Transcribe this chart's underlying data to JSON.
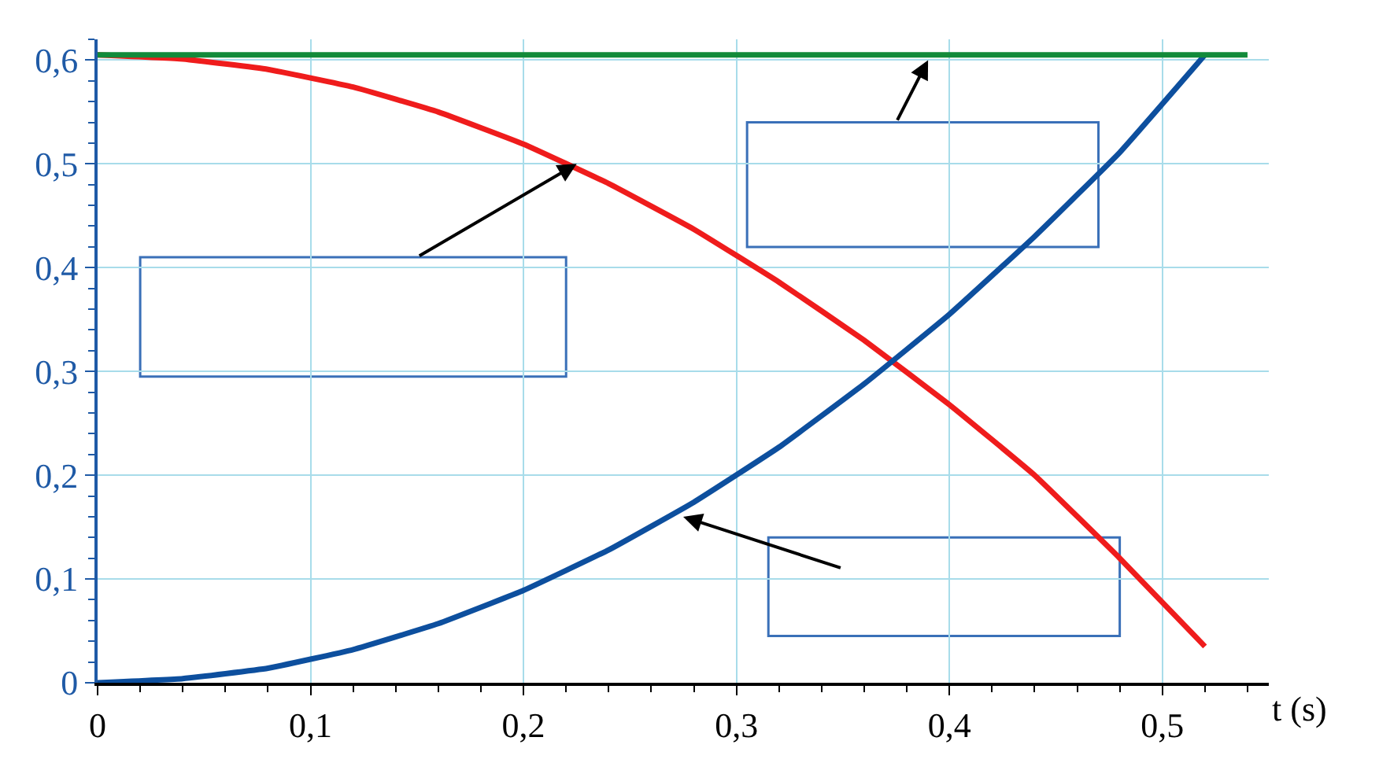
{
  "chart_data": {
    "type": "line",
    "xlabel": "t (s)",
    "x": [
      0,
      0.04,
      0.08,
      0.12,
      0.16,
      0.2,
      0.24,
      0.28,
      0.32,
      0.36,
      0.4,
      0.44,
      0.48,
      0.52
    ],
    "series": [
      {
        "color": "#ef1c1c",
        "values": [
          0.605,
          0.601,
          0.591,
          0.574,
          0.55,
          0.519,
          0.481,
          0.437,
          0.386,
          0.33,
          0.268,
          0.2,
          0.12,
          0.035
        ]
      },
      {
        "color": "#0d4f9e",
        "values": [
          0,
          0.004,
          0.014,
          0.032,
          0.057,
          0.089,
          0.128,
          0.174,
          0.227,
          0.288,
          0.355,
          0.43,
          0.511,
          0.605
        ]
      },
      {
        "color": "#128a3a",
        "x": [
          0,
          0.54
        ],
        "values": [
          0.605,
          0.605
        ]
      }
    ],
    "xlim": [
      0,
      0.55
    ],
    "ylim": [
      0,
      0.62
    ],
    "xticks": [
      {
        "value": 0,
        "label": "0"
      },
      {
        "value": 0.1,
        "label": "0,1"
      },
      {
        "value": 0.2,
        "label": "0,2"
      },
      {
        "value": 0.3,
        "label": "0,3"
      },
      {
        "value": 0.4,
        "label": "0,4"
      },
      {
        "value": 0.5,
        "label": "0,5"
      }
    ],
    "yticks": [
      {
        "value": 0,
        "label": "0"
      },
      {
        "value": 0.1,
        "label": "0,1"
      },
      {
        "value": 0.2,
        "label": "0,2"
      },
      {
        "value": 0.3,
        "label": "0,3"
      },
      {
        "value": 0.4,
        "label": "0,4"
      },
      {
        "value": 0.5,
        "label": "0,5"
      },
      {
        "value": 0.6,
        "label": "0,6"
      }
    ],
    "grid": true,
    "marker": "none",
    "line_style": "solid"
  }
}
